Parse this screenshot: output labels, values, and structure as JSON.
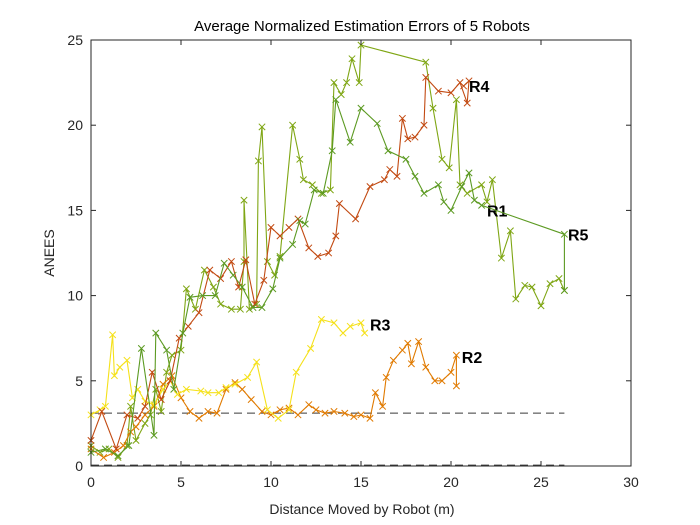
{
  "chart_data": {
    "type": "line",
    "title": "Average Normalized Estimation Errors of 5 Robots",
    "xlabel": "Distance Moved by Robot (m)",
    "ylabel": "ANEES",
    "xlim": [
      0,
      30
    ],
    "ylim": [
      0,
      25
    ],
    "xticks": [
      0,
      5,
      10,
      15,
      20,
      25,
      30
    ],
    "yticks": [
      0,
      5,
      10,
      15,
      20,
      25
    ],
    "grid": false,
    "marker": "x",
    "reference_lines": [
      {
        "y": 3.1,
        "x_range": [
          0,
          26.3
        ],
        "style": "dashed",
        "color": "#3a3a3a"
      },
      {
        "y": 0.05,
        "x_range": [
          0,
          26.3
        ],
        "style": "dashed",
        "color": "#3a3a3a"
      }
    ],
    "series": [
      {
        "name": "R1",
        "color": "#7fa614",
        "label_at": [
          22.0,
          15.0
        ],
        "points": [
          [
            0,
            1.2
          ],
          [
            0.5,
            0.8
          ],
          [
            1.0,
            1.0
          ],
          [
            1.5,
            0.5
          ],
          [
            2.0,
            1.2
          ],
          [
            2.2,
            3.5
          ],
          [
            2.5,
            1.5
          ],
          [
            3.0,
            2.5
          ],
          [
            3.3,
            3.0
          ],
          [
            3.6,
            4.5
          ],
          [
            3.9,
            3.2
          ],
          [
            4.2,
            5.5
          ],
          [
            4.5,
            6.5
          ],
          [
            5.0,
            6.8
          ],
          [
            5.3,
            10.4
          ],
          [
            5.8,
            9.2
          ],
          [
            6.3,
            11.5
          ],
          [
            6.8,
            10.5
          ],
          [
            7.2,
            9.5
          ],
          [
            7.8,
            9.2
          ],
          [
            8.3,
            9.2
          ],
          [
            8.5,
            12.0
          ],
          [
            8.5,
            15.6
          ],
          [
            8.8,
            9.2
          ],
          [
            9.2,
            9.5
          ],
          [
            9.3,
            17.9
          ],
          [
            9.5,
            19.9
          ],
          [
            9.8,
            12.0
          ],
          [
            10.2,
            11.2
          ],
          [
            10.5,
            12.3
          ],
          [
            11.2,
            20.0
          ],
          [
            11.6,
            18.0
          ],
          [
            11.8,
            16.8
          ],
          [
            12.3,
            16.5
          ],
          [
            12.8,
            16.0
          ],
          [
            13.3,
            16.2
          ],
          [
            13.5,
            22.5
          ],
          [
            13.9,
            21.8
          ],
          [
            14.2,
            22.5
          ],
          [
            14.5,
            23.9
          ],
          [
            14.9,
            22.5
          ],
          [
            15.0,
            24.7
          ],
          [
            18.6,
            23.7
          ],
          [
            19.0,
            21.0
          ],
          [
            19.5,
            18.0
          ],
          [
            19.9,
            17.5
          ],
          [
            20.3,
            21.5
          ],
          [
            20.5,
            16.5
          ],
          [
            20.9,
            16.0
          ],
          [
            21.7,
            16.5
          ],
          [
            22.0,
            15.5
          ],
          [
            22.3,
            16.8
          ],
          [
            22.8,
            12.2
          ],
          [
            23.3,
            13.8
          ],
          [
            23.6,
            9.8
          ],
          [
            24.1,
            10.6
          ],
          [
            24.5,
            10.5
          ],
          [
            25.0,
            9.4
          ],
          [
            25.5,
            10.7
          ],
          [
            26.0,
            11.0
          ],
          [
            26.3,
            10.3
          ]
        ]
      },
      {
        "name": "R2",
        "color": "#e07a00",
        "label_at": [
          20.6,
          6.4
        ],
        "points": [
          [
            0,
            1.0
          ],
          [
            0.7,
            0.5
          ],
          [
            1.3,
            0.8
          ],
          [
            1.8,
            1.2
          ],
          [
            2.2,
            2.0
          ],
          [
            2.5,
            2.3
          ],
          [
            3.0,
            3.0
          ],
          [
            3.5,
            3.5
          ],
          [
            4.0,
            4.8
          ],
          [
            4.5,
            5.3
          ],
          [
            5.0,
            4.0
          ],
          [
            5.5,
            3.2
          ],
          [
            6.0,
            2.8
          ],
          [
            6.5,
            3.2
          ],
          [
            7.0,
            3.1
          ],
          [
            7.5,
            4.5
          ],
          [
            8.0,
            4.9
          ],
          [
            8.4,
            4.5
          ],
          [
            8.9,
            3.9
          ],
          [
            9.5,
            3.2
          ],
          [
            10.0,
            3.0
          ],
          [
            10.5,
            3.3
          ],
          [
            11.0,
            3.4
          ],
          [
            11.5,
            3.0
          ],
          [
            12.1,
            3.6
          ],
          [
            12.5,
            3.3
          ],
          [
            13.0,
            3.1
          ],
          [
            13.5,
            3.2
          ],
          [
            14.1,
            3.1
          ],
          [
            14.6,
            2.9
          ],
          [
            15.0,
            3.0
          ],
          [
            15.5,
            2.8
          ],
          [
            15.8,
            4.3
          ],
          [
            16.2,
            3.5
          ],
          [
            16.4,
            5.2
          ],
          [
            16.8,
            6.2
          ],
          [
            17.3,
            6.8
          ],
          [
            17.6,
            7.2
          ],
          [
            17.8,
            6.0
          ],
          [
            18.2,
            7.3
          ],
          [
            18.6,
            5.8
          ],
          [
            19.1,
            5.0
          ],
          [
            19.5,
            5.0
          ],
          [
            20.0,
            5.5
          ],
          [
            20.3,
            6.5
          ],
          [
            20.3,
            4.7
          ]
        ]
      },
      {
        "name": "R3",
        "color": "#f5e11a",
        "label_at": [
          15.5,
          8.3
        ],
        "points": [
          [
            0,
            3.0
          ],
          [
            0.5,
            3.3
          ],
          [
            0.8,
            3.5
          ],
          [
            1.2,
            7.7
          ],
          [
            1.3,
            5.3
          ],
          [
            1.6,
            5.8
          ],
          [
            2.0,
            6.2
          ],
          [
            2.3,
            4.0
          ],
          [
            2.6,
            4.5
          ],
          [
            3.0,
            3.8
          ],
          [
            3.5,
            3.6
          ],
          [
            4.0,
            4.5
          ],
          [
            4.4,
            5.0
          ],
          [
            4.8,
            4.2
          ],
          [
            5.3,
            4.5
          ],
          [
            6.1,
            4.4
          ],
          [
            6.5,
            4.3
          ],
          [
            7.1,
            4.3
          ],
          [
            7.5,
            4.6
          ],
          [
            8.0,
            4.8
          ],
          [
            8.7,
            5.2
          ],
          [
            9.2,
            6.1
          ],
          [
            9.8,
            3.3
          ],
          [
            10.4,
            2.8
          ],
          [
            11.0,
            3.3
          ],
          [
            11.4,
            5.5
          ],
          [
            12.2,
            6.9
          ],
          [
            12.8,
            8.6
          ],
          [
            13.5,
            8.4
          ],
          [
            14.0,
            7.8
          ],
          [
            14.4,
            8.2
          ],
          [
            15.0,
            8.4
          ],
          [
            15.2,
            7.8
          ]
        ]
      },
      {
        "name": "R4",
        "color": "#c24a12",
        "label_at": [
          21.0,
          22.3
        ],
        "points": [
          [
            0,
            1.5
          ],
          [
            0.6,
            3.2
          ],
          [
            1.4,
            1.0
          ],
          [
            2.0,
            3.0
          ],
          [
            2.6,
            2.8
          ],
          [
            3.0,
            3.5
          ],
          [
            3.4,
            5.5
          ],
          [
            3.9,
            3.9
          ],
          [
            4.4,
            5.0
          ],
          [
            4.9,
            7.5
          ],
          [
            5.4,
            8.2
          ],
          [
            6.0,
            9.0
          ],
          [
            6.6,
            11.5
          ],
          [
            7.2,
            11.0
          ],
          [
            7.8,
            12.0
          ],
          [
            8.2,
            10.5
          ],
          [
            8.6,
            12.1
          ],
          [
            9.1,
            9.5
          ],
          [
            9.6,
            10.9
          ],
          [
            10.0,
            14.0
          ],
          [
            10.5,
            13.5
          ],
          [
            11.0,
            14.0
          ],
          [
            11.5,
            14.5
          ],
          [
            12.1,
            12.8
          ],
          [
            12.6,
            12.3
          ],
          [
            13.2,
            12.5
          ],
          [
            13.6,
            13.5
          ],
          [
            13.8,
            15.4
          ],
          [
            14.7,
            14.5
          ],
          [
            15.5,
            16.4
          ],
          [
            16.3,
            16.8
          ],
          [
            16.6,
            17.4
          ],
          [
            17.0,
            17.0
          ],
          [
            17.3,
            20.4
          ],
          [
            17.6,
            19.2
          ],
          [
            18.0,
            19.3
          ],
          [
            18.5,
            20.0
          ],
          [
            18.6,
            22.8
          ],
          [
            19.3,
            22.0
          ],
          [
            20.0,
            21.9
          ],
          [
            20.5,
            22.5
          ],
          [
            20.9,
            21.3
          ],
          [
            21.0,
            22.6
          ],
          [
            20.7,
            22.3
          ]
        ]
      },
      {
        "name": "R5",
        "color": "#5c9a22",
        "label_at": [
          26.5,
          13.6
        ],
        "points": [
          [
            0,
            0.8
          ],
          [
            0.8,
            1.0
          ],
          [
            1.5,
            0.6
          ],
          [
            2.1,
            1.2
          ],
          [
            2.8,
            6.9
          ],
          [
            3.5,
            1.8
          ],
          [
            3.6,
            7.8
          ],
          [
            4.2,
            6.8
          ],
          [
            4.6,
            4.5
          ],
          [
            5.1,
            7.8
          ],
          [
            5.5,
            9.9
          ],
          [
            6.2,
            10.0
          ],
          [
            6.9,
            10.0
          ],
          [
            7.4,
            11.9
          ],
          [
            7.9,
            11.2
          ],
          [
            8.4,
            10.5
          ],
          [
            9.0,
            9.3
          ],
          [
            9.5,
            9.3
          ],
          [
            10.1,
            10.4
          ],
          [
            10.5,
            12.2
          ],
          [
            11.2,
            13.0
          ],
          [
            11.6,
            14.4
          ],
          [
            11.9,
            14.2
          ],
          [
            12.4,
            16.2
          ],
          [
            12.9,
            16.0
          ],
          [
            13.4,
            18.5
          ],
          [
            13.6,
            21.5
          ],
          [
            14.4,
            19.0
          ],
          [
            15.0,
            21.0
          ],
          [
            15.9,
            20.1
          ],
          [
            16.5,
            18.5
          ],
          [
            17.5,
            18.0
          ],
          [
            18.0,
            17.0
          ],
          [
            18.5,
            16.0
          ],
          [
            19.3,
            16.5
          ],
          [
            19.6,
            15.5
          ],
          [
            20.0,
            15.0
          ],
          [
            20.6,
            16.4
          ],
          [
            21.0,
            17.2
          ],
          [
            21.3,
            15.6
          ],
          [
            21.7,
            15.3
          ],
          [
            26.3,
            13.6
          ],
          [
            26.3,
            10.3
          ]
        ]
      }
    ]
  }
}
